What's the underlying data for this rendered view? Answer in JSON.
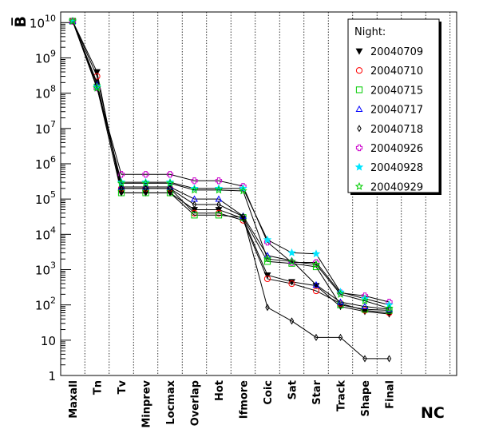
{
  "chart_data": {
    "type": "line",
    "title": "",
    "xlabel": "NC",
    "ylabel": "B̅",
    "yscale": "log",
    "ylim": [
      1,
      20000000000
    ],
    "y_ticks": [
      {
        "value": 1,
        "base": "1",
        "exp": ""
      },
      {
        "value": 10,
        "base": "10",
        "exp": ""
      },
      {
        "value": 100,
        "base": "10",
        "exp": "2"
      },
      {
        "value": 1000,
        "base": "10",
        "exp": "3"
      },
      {
        "value": 10000,
        "base": "10",
        "exp": "4"
      },
      {
        "value": 100000,
        "base": "10",
        "exp": "5"
      },
      {
        "value": 1000000,
        "base": "10",
        "exp": "6"
      },
      {
        "value": 10000000,
        "base": "10",
        "exp": "7"
      },
      {
        "value": 100000000,
        "base": "10",
        "exp": "8"
      },
      {
        "value": 1000000000,
        "base": "10",
        "exp": "9"
      },
      {
        "value": 10000000000,
        "base": "10",
        "exp": "10"
      }
    ],
    "categories": [
      "Maxall",
      "Tn",
      "Tv",
      "Minprev",
      "Locmax",
      "Overlap",
      "Hot",
      "Ifmore",
      "Coic",
      "Sat",
      "Star",
      "Track",
      "Shape",
      "Final"
    ],
    "grid_x": true,
    "legend": {
      "title": "Night:",
      "position": "top-right"
    },
    "series": [
      {
        "name": "20040709",
        "marker": "triangle-down-filled",
        "color": "#000000",
        "values": [
          11000000000,
          400000000,
          150000,
          150000,
          150000,
          50000,
          50000,
          28000,
          700,
          450,
          350,
          90,
          65,
          55
        ]
      },
      {
        "name": "20040710",
        "marker": "circle-open",
        "color": "#ff0000",
        "values": [
          11000000000,
          300000000,
          200000,
          200000,
          200000,
          40000,
          40000,
          25000,
          550,
          400,
          250,
          110,
          70,
          60
        ]
      },
      {
        "name": "20040715",
        "marker": "square-open",
        "color": "#00cc00",
        "values": [
          11000000000,
          150000000,
          150000,
          150000,
          150000,
          35000,
          35000,
          30000,
          1700,
          1500,
          1200,
          100,
          75,
          70
        ]
      },
      {
        "name": "20040717",
        "marker": "triangle-up-open",
        "color": "#0000ff",
        "values": [
          11000000000,
          180000000,
          220000,
          220000,
          220000,
          100000,
          100000,
          33000,
          2500,
          1800,
          370,
          120,
          90,
          75
        ]
      },
      {
        "name": "20040718",
        "marker": "diamond-open",
        "color": "#000000",
        "values": [
          11000000000,
          200000000,
          200000,
          200000,
          200000,
          70000,
          70000,
          32000,
          85,
          35,
          12,
          12,
          3,
          3
        ]
      },
      {
        "name": "20040926",
        "marker": "cross-open",
        "color": "#cc00cc",
        "values": [
          11000000000,
          140000000,
          500000,
          500000,
          500000,
          330000,
          330000,
          230000,
          6000,
          1600,
          1600,
          220,
          180,
          120
        ]
      },
      {
        "name": "20040928",
        "marker": "star-filled",
        "color": "#00e5ff",
        "values": [
          11000000000,
          150000000,
          300000,
          300000,
          300000,
          200000,
          200000,
          200000,
          7000,
          3000,
          2800,
          230,
          150,
          100
        ]
      },
      {
        "name": "20040929",
        "marker": "star-open",
        "color": "#00cc00",
        "values": [
          11000000000,
          140000000,
          280000,
          280000,
          280000,
          180000,
          180000,
          170000,
          2000,
          1700,
          1400,
          200,
          130,
          80
        ]
      }
    ]
  }
}
